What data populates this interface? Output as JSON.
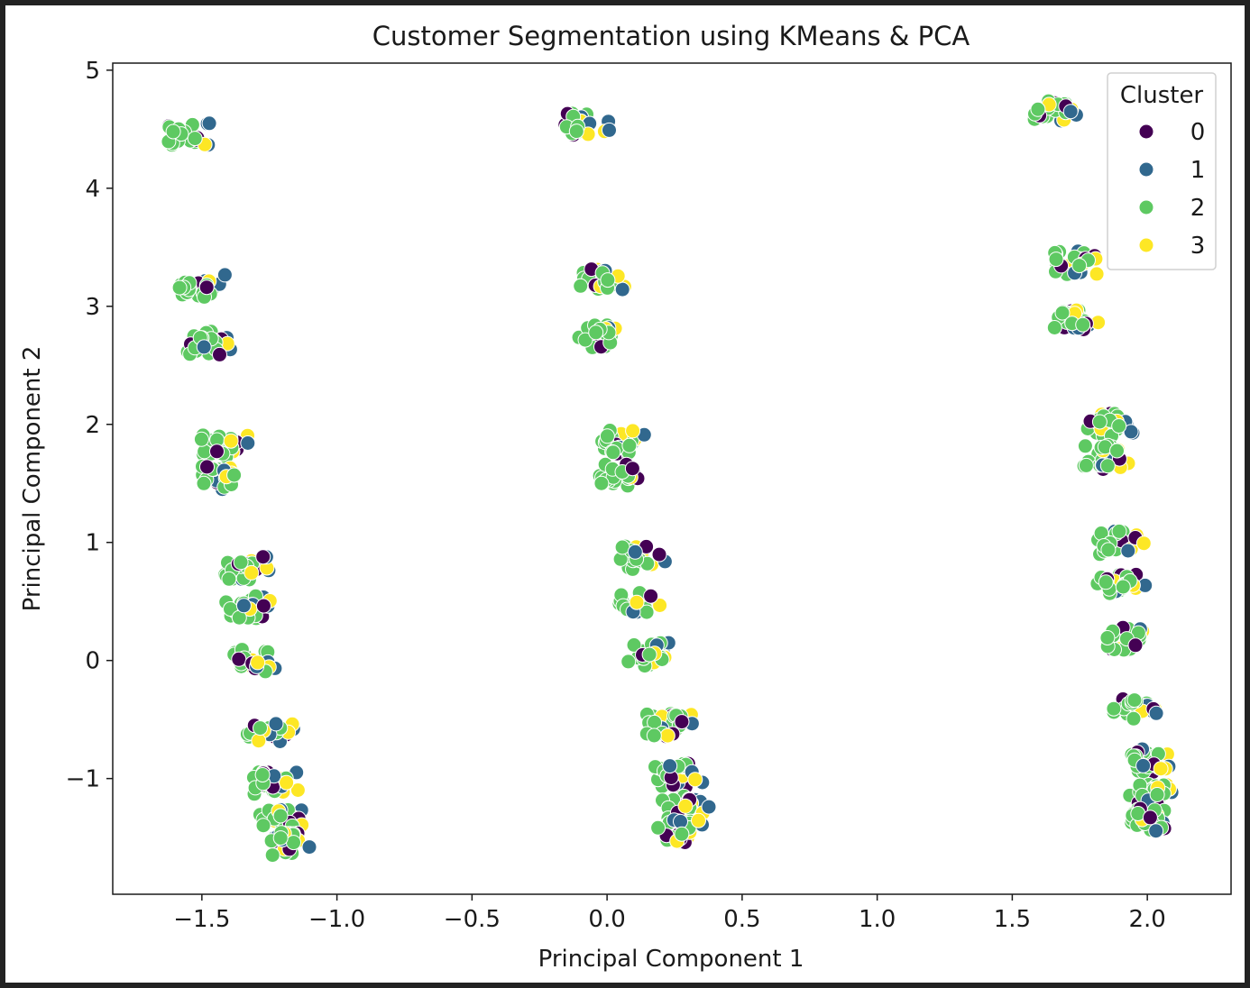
{
  "chart_data": {
    "type": "scatter",
    "title": "Customer Segmentation using KMeans & PCA",
    "xlabel": "Principal Component 1",
    "ylabel": "Principal Component 2",
    "xlim": [
      -1.83,
      2.31
    ],
    "ylim": [
      -1.98,
      5.06
    ],
    "xticks": [
      -1.5,
      -1.0,
      -0.5,
      0.0,
      0.5,
      1.0,
      1.5,
      2.0
    ],
    "xtick_labels": [
      "−1.5",
      "−1.0",
      "−0.5",
      "0.0",
      "0.5",
      "1.0",
      "1.5",
      "2.0"
    ],
    "yticks": [
      -1,
      0,
      1,
      2,
      3,
      4,
      5
    ],
    "ytick_labels": [
      "−1",
      "0",
      "1",
      "2",
      "3",
      "4",
      "5"
    ],
    "grid": false,
    "legend": {
      "title": "Cluster",
      "placement": "top-right",
      "entries": [
        "0",
        "1",
        "2",
        "3"
      ]
    },
    "series": [
      {
        "name": "0",
        "color": "#440154"
      },
      {
        "name": "1",
        "color": "#31688e"
      },
      {
        "name": "2",
        "color": "#5ec962"
      },
      {
        "name": "3",
        "color": "#fde725"
      }
    ],
    "groups": [
      {
        "x": -1.57,
        "y": 4.46
      },
      {
        "x": -1.5,
        "y": 3.17
      },
      {
        "x": -1.48,
        "y": 2.69
      },
      {
        "x": -1.42,
        "y": 1.82
      },
      {
        "x": -1.42,
        "y": 1.55
      },
      {
        "x": -1.33,
        "y": 0.78
      },
      {
        "x": -1.33,
        "y": 0.45
      },
      {
        "x": -1.3,
        "y": 0.0
      },
      {
        "x": -1.25,
        "y": -0.6
      },
      {
        "x": -1.23,
        "y": -1.04
      },
      {
        "x": -1.2,
        "y": -1.35
      },
      {
        "x": -1.2,
        "y": -1.55
      },
      {
        "x": -0.09,
        "y": 4.55
      },
      {
        "x": -0.02,
        "y": 3.24
      },
      {
        "x": -0.02,
        "y": 2.75
      },
      {
        "x": 0.05,
        "y": 1.85
      },
      {
        "x": 0.05,
        "y": 1.57
      },
      {
        "x": 0.13,
        "y": 0.87
      },
      {
        "x": 0.11,
        "y": 0.5
      },
      {
        "x": 0.16,
        "y": 0.05
      },
      {
        "x": 0.23,
        "y": -0.55
      },
      {
        "x": 0.26,
        "y": -0.97
      },
      {
        "x": 0.28,
        "y": -1.25
      },
      {
        "x": 0.27,
        "y": -1.45
      },
      {
        "x": 1.66,
        "y": 4.67
      },
      {
        "x": 1.74,
        "y": 3.37
      },
      {
        "x": 1.74,
        "y": 2.89
      },
      {
        "x": 1.85,
        "y": 2.0
      },
      {
        "x": 1.85,
        "y": 1.72
      },
      {
        "x": 1.9,
        "y": 1.0
      },
      {
        "x": 1.9,
        "y": 0.65
      },
      {
        "x": 1.93,
        "y": 0.18
      },
      {
        "x": 1.96,
        "y": -0.4
      },
      {
        "x": 2.0,
        "y": -0.85
      },
      {
        "x": 2.02,
        "y": -1.15
      },
      {
        "x": 2.02,
        "y": -1.35
      }
    ]
  }
}
